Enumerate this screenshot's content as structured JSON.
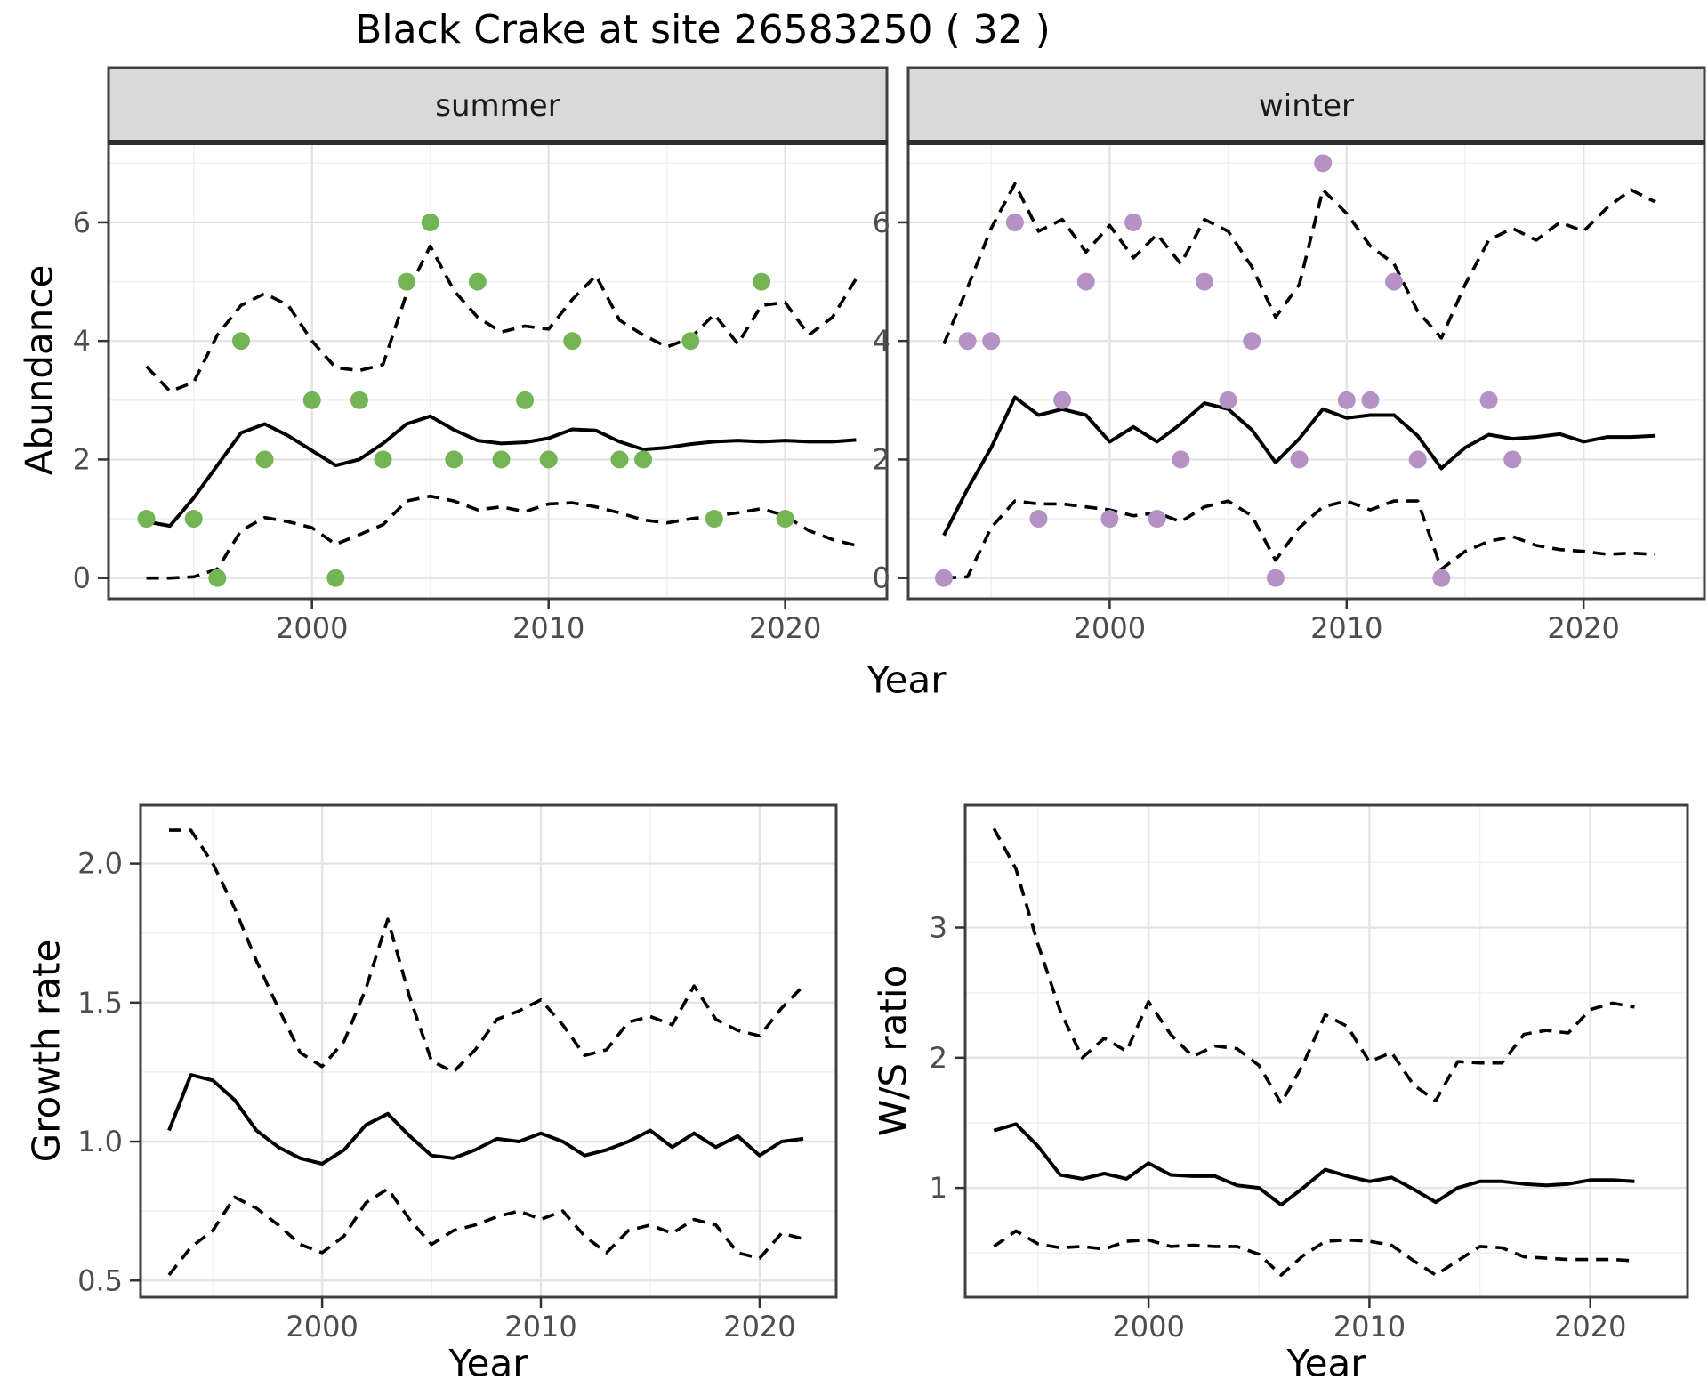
{
  "title": "Black Crake at site 26583250 ( 32 )",
  "labels": {
    "x": "Year",
    "y_abundance": "Abundance",
    "y_growth": "Growth rate",
    "y_ws": "W/S ratio"
  },
  "colors": {
    "summer_points": "#73b455",
    "winter_points": "#b591c5",
    "line": "#000000",
    "strip_bg": "#d9d9d9",
    "panel_border": "#404040",
    "grid_major": "#e4e4e4",
    "grid_minor": "#f1f1f1",
    "tick_text": "#4d4d4d"
  },
  "chart_data": {
    "type": "line",
    "title": "Black Crake at site 26583250 ( 32 )",
    "xlabel": "Year",
    "legend": "none",
    "panels": [
      {
        "id": "abundance-summer",
        "facet_label": "summer",
        "ylabel": "Abundance",
        "xlim": [
          1991.4,
          2024.3
        ],
        "ylim": [
          -0.35,
          7.35
        ],
        "xticks": {
          "values": [
            2000,
            2010,
            2020
          ],
          "labels": [
            "2000",
            "2010",
            "2020"
          ]
        },
        "xminor": [
          1995,
          2005,
          2015
        ],
        "yticks": {
          "values": [
            0,
            2,
            4,
            6
          ],
          "labels": [
            "0",
            "2",
            "4",
            "6"
          ]
        },
        "yminor": [
          1,
          3,
          5,
          7
        ],
        "points": {
          "color": "#73b455",
          "years": [
            1993,
            1995,
            1996,
            1997,
            1998,
            2000,
            2001,
            2002,
            2003,
            2004,
            2005,
            2006,
            2007,
            2008,
            2009,
            2010,
            2011,
            2013,
            2014,
            2016,
            2017,
            2019,
            2020
          ],
          "values": [
            1,
            1,
            0,
            4,
            2,
            3,
            0,
            3,
            2,
            5,
            6,
            2,
            5,
            2,
            3,
            2,
            4,
            2,
            2,
            4,
            1,
            5,
            1
          ]
        },
        "years": [
          1993,
          1994,
          1995,
          1996,
          1997,
          1998,
          1999,
          2000,
          2001,
          2002,
          2003,
          2004,
          2005,
          2006,
          2007,
          2008,
          2009,
          2010,
          2011,
          2012,
          2013,
          2014,
          2015,
          2016,
          2017,
          2018,
          2019,
          2020,
          2021,
          2022,
          2023
        ],
        "series": [
          {
            "name": "median",
            "style": "solid",
            "values": [
              0.95,
              0.88,
              1.35,
              1.9,
              2.45,
              2.6,
              2.4,
              2.15,
              1.9,
              2.0,
              2.27,
              2.6,
              2.73,
              2.5,
              2.32,
              2.27,
              2.29,
              2.36,
              2.51,
              2.49,
              2.3,
              2.17,
              2.2,
              2.26,
              2.3,
              2.32,
              2.3,
              2.32,
              2.3,
              2.3,
              2.33
            ]
          },
          {
            "name": "upper 95% CI",
            "style": "dashed",
            "values": [
              3.57,
              3.15,
              3.3,
              4.1,
              4.6,
              4.8,
              4.6,
              4.0,
              3.55,
              3.5,
              3.6,
              4.8,
              5.6,
              4.85,
              4.4,
              4.15,
              4.25,
              4.2,
              4.7,
              5.1,
              4.35,
              4.1,
              3.9,
              4.05,
              4.45,
              3.95,
              4.6,
              4.65,
              4.1,
              4.4,
              5.05
            ]
          },
          {
            "name": "lower 95% CI",
            "style": "dashed",
            "values": [
              0.0,
              0.0,
              0.02,
              0.15,
              0.8,
              1.02,
              0.95,
              0.85,
              0.57,
              0.73,
              0.9,
              1.3,
              1.38,
              1.3,
              1.15,
              1.2,
              1.12,
              1.25,
              1.27,
              1.2,
              1.1,
              0.98,
              0.93,
              1.0,
              1.05,
              1.1,
              1.17,
              1.05,
              0.8,
              0.65,
              0.55
            ]
          }
        ]
      },
      {
        "id": "abundance-winter",
        "facet_label": "winter",
        "ylabel": "Abundance",
        "xlim": [
          1991.5,
          2025.1
        ],
        "ylim": [
          -0.35,
          7.35
        ],
        "xticks": {
          "values": [
            2000,
            2010,
            2020
          ],
          "labels": [
            "2000",
            "2010",
            "2020"
          ]
        },
        "xminor": [
          1995,
          2005,
          2015,
          2025
        ],
        "yticks": {
          "values": [
            0,
            2,
            4,
            6
          ],
          "labels": [
            "0",
            "2",
            "4",
            "6"
          ]
        },
        "yminor": [
          1,
          3,
          5,
          7
        ],
        "points": {
          "color": "#b591c5",
          "years": [
            1993,
            1994,
            1995,
            1996,
            1997,
            1998,
            1999,
            2000,
            2001,
            2002,
            2003,
            2004,
            2005,
            2006,
            2007,
            2008,
            2009,
            2010,
            2011,
            2012,
            2013,
            2014,
            2016,
            2017
          ],
          "values": [
            0,
            4,
            4,
            6,
            1,
            3,
            5,
            1,
            6,
            1,
            2,
            5,
            3,
            4,
            0,
            2,
            7,
            3,
            3,
            5,
            2,
            0,
            3,
            2
          ]
        },
        "years": [
          1993,
          1994,
          1995,
          1996,
          1997,
          1998,
          1999,
          2000,
          2001,
          2002,
          2003,
          2004,
          2005,
          2006,
          2007,
          2008,
          2009,
          2010,
          2011,
          2012,
          2013,
          2014,
          2015,
          2016,
          2017,
          2018,
          2019,
          2020,
          2021,
          2022,
          2023
        ],
        "series": [
          {
            "name": "median",
            "style": "solid",
            "values": [
              0.72,
              1.5,
              2.2,
              3.05,
              2.75,
              2.85,
              2.75,
              2.3,
              2.55,
              2.3,
              2.6,
              2.95,
              2.85,
              2.5,
              1.95,
              2.35,
              2.85,
              2.7,
              2.75,
              2.75,
              2.4,
              1.85,
              2.2,
              2.42,
              2.35,
              2.38,
              2.43,
              2.3,
              2.38,
              2.38,
              2.4
            ]
          },
          {
            "name": "upper 95% CI",
            "style": "dashed",
            "values": [
              3.95,
              4.9,
              5.9,
              6.65,
              5.85,
              6.05,
              5.5,
              5.95,
              5.4,
              5.8,
              5.3,
              6.05,
              5.85,
              5.25,
              4.4,
              4.95,
              6.55,
              6.15,
              5.6,
              5.3,
              4.5,
              4.05,
              4.95,
              5.7,
              5.9,
              5.7,
              6.0,
              5.85,
              6.25,
              6.55,
              6.35
            ]
          },
          {
            "name": "lower 95% CI",
            "style": "dashed",
            "values": [
              0.0,
              0.02,
              0.85,
              1.3,
              1.25,
              1.25,
              1.2,
              1.15,
              1.05,
              1.1,
              0.95,
              1.2,
              1.3,
              1.05,
              0.3,
              0.85,
              1.2,
              1.3,
              1.15,
              1.3,
              1.3,
              0.15,
              0.45,
              0.62,
              0.7,
              0.55,
              0.48,
              0.45,
              0.4,
              0.42,
              0.4
            ]
          }
        ]
      },
      {
        "id": "growth-rate",
        "facet_label": null,
        "ylabel": "Growth rate",
        "xlim": [
          1991.7,
          2023.5
        ],
        "ylim": [
          0.44,
          2.21
        ],
        "xticks": {
          "values": [
            2000,
            2010,
            2020
          ],
          "labels": [
            "2000",
            "2010",
            "2020"
          ]
        },
        "xminor": [
          1995,
          2005,
          2015
        ],
        "yticks": {
          "values": [
            0.5,
            1.0,
            1.5,
            2.0
          ],
          "labels": [
            "0.5",
            "1.0",
            "1.5",
            "2.0"
          ]
        },
        "yminor": [
          0.75,
          1.25,
          1.75
        ],
        "years": [
          1993,
          1994,
          1995,
          1996,
          1997,
          1998,
          1999,
          2000,
          2001,
          2002,
          2003,
          2004,
          2005,
          2006,
          2007,
          2008,
          2009,
          2010,
          2011,
          2012,
          2013,
          2014,
          2015,
          2016,
          2017,
          2018,
          2019,
          2020,
          2021,
          2022
        ],
        "series": [
          {
            "name": "median",
            "style": "solid",
            "values": [
              1.04,
              1.24,
              1.22,
              1.15,
              1.04,
              0.98,
              0.94,
              0.92,
              0.97,
              1.06,
              1.1,
              1.02,
              0.95,
              0.94,
              0.97,
              1.01,
              1.0,
              1.03,
              1.0,
              0.95,
              0.97,
              1.0,
              1.04,
              0.98,
              1.03,
              0.98,
              1.02,
              0.95,
              1.0,
              1.01
            ]
          },
          {
            "name": "upper 95% CI",
            "style": "dashed",
            "values": [
              2.12,
              2.12,
              2.0,
              1.84,
              1.65,
              1.48,
              1.32,
              1.27,
              1.36,
              1.55,
              1.8,
              1.52,
              1.29,
              1.25,
              1.33,
              1.44,
              1.47,
              1.51,
              1.42,
              1.31,
              1.33,
              1.43,
              1.45,
              1.42,
              1.56,
              1.44,
              1.4,
              1.38,
              1.48,
              1.56
            ]
          },
          {
            "name": "lower 95% CI",
            "style": "dashed",
            "values": [
              0.52,
              0.62,
              0.68,
              0.8,
              0.76,
              0.7,
              0.63,
              0.6,
              0.66,
              0.78,
              0.83,
              0.72,
              0.63,
              0.68,
              0.7,
              0.73,
              0.75,
              0.72,
              0.75,
              0.66,
              0.6,
              0.68,
              0.7,
              0.67,
              0.72,
              0.7,
              0.6,
              0.58,
              0.67,
              0.65
            ]
          }
        ]
      },
      {
        "id": "ws-ratio",
        "facet_label": null,
        "ylabel": "W/S ratio",
        "xlim": [
          1991.7,
          2024.4
        ],
        "ylim": [
          0.16,
          3.94
        ],
        "xticks": {
          "values": [
            2000,
            2010,
            2020
          ],
          "labels": [
            "2000",
            "2010",
            "2020"
          ]
        },
        "xminor": [
          1995,
          2005,
          2015
        ],
        "yticks": {
          "values": [
            1,
            2,
            3
          ],
          "labels": [
            "1",
            "2",
            "3"
          ]
        },
        "yminor": [
          0.5,
          1.5,
          2.5,
          3.5
        ],
        "years": [
          1993,
          1994,
          1995,
          1996,
          1997,
          1998,
          1999,
          2000,
          2001,
          2002,
          2003,
          2004,
          2005,
          2006,
          2007,
          2008,
          2009,
          2010,
          2011,
          2012,
          2013,
          2014,
          2015,
          2016,
          2017,
          2018,
          2019,
          2020,
          2021,
          2022
        ],
        "series": [
          {
            "name": "median",
            "style": "solid",
            "values": [
              1.44,
              1.49,
              1.32,
              1.1,
              1.07,
              1.11,
              1.07,
              1.19,
              1.1,
              1.09,
              1.09,
              1.02,
              1.0,
              0.87,
              1.0,
              1.14,
              1.09,
              1.05,
              1.08,
              0.99,
              0.89,
              1.0,
              1.05,
              1.05,
              1.03,
              1.02,
              1.03,
              1.06,
              1.06,
              1.05
            ]
          },
          {
            "name": "upper 95% CI",
            "style": "dashed",
            "values": [
              3.76,
              3.45,
              2.87,
              2.36,
              2.0,
              2.15,
              2.05,
              2.43,
              2.18,
              2.01,
              2.09,
              2.07,
              1.94,
              1.65,
              1.95,
              2.33,
              2.24,
              1.97,
              2.04,
              1.79,
              1.67,
              1.97,
              1.96,
              1.96,
              2.18,
              2.21,
              2.19,
              2.37,
              2.42,
              2.39
            ]
          },
          {
            "name": "lower 95% CI",
            "style": "dashed",
            "values": [
              0.55,
              0.67,
              0.57,
              0.54,
              0.55,
              0.53,
              0.59,
              0.6,
              0.55,
              0.56,
              0.55,
              0.55,
              0.49,
              0.33,
              0.48,
              0.59,
              0.6,
              0.59,
              0.56,
              0.44,
              0.33,
              0.44,
              0.55,
              0.54,
              0.47,
              0.46,
              0.45,
              0.45,
              0.45,
              0.44
            ]
          }
        ]
      }
    ]
  }
}
